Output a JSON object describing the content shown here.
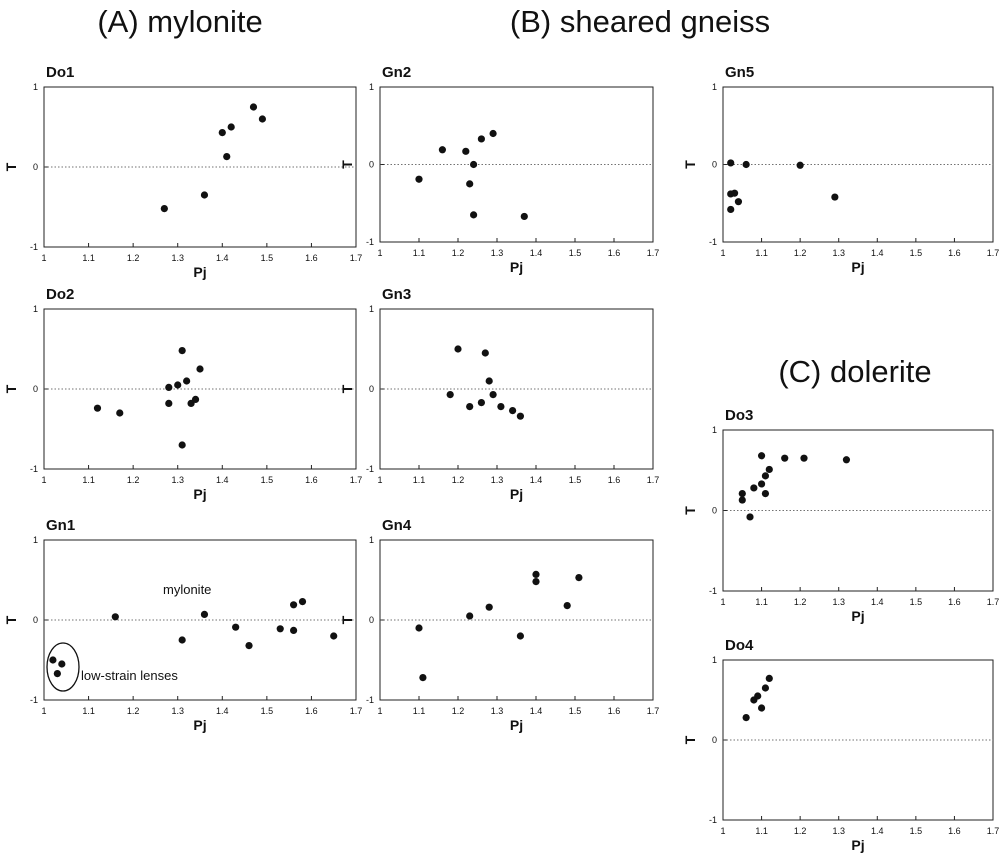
{
  "headings": [
    "(A) mylonite",
    "(B) sheared gneiss",
    "(C) dolerite"
  ],
  "chart_data": [
    {
      "type": "scatter",
      "title": "Do1",
      "xlabel": "Pj",
      "ylabel": "T",
      "xlim": [
        1,
        1.7
      ],
      "ylim": [
        -1,
        1
      ],
      "xticks": [
        1,
        1.1,
        1.2,
        1.3,
        1.4,
        1.5,
        1.6,
        1.7
      ],
      "yticks": [
        -1,
        0,
        1
      ],
      "reference_line": 0,
      "color": "#111111",
      "x": [
        1.27,
        1.36,
        1.4,
        1.42,
        1.41,
        1.47,
        1.49
      ],
      "values": [
        -0.52,
        -0.35,
        0.43,
        0.5,
        0.13,
        0.75,
        0.6
      ]
    },
    {
      "type": "scatter",
      "title": "Do2",
      "xlabel": "Pj",
      "ylabel": "T",
      "xlim": [
        1,
        1.7
      ],
      "ylim": [
        -1,
        1
      ],
      "xticks": [
        1,
        1.1,
        1.2,
        1.3,
        1.4,
        1.5,
        1.6,
        1.7
      ],
      "yticks": [
        -1,
        0,
        1
      ],
      "reference_line": 0,
      "color": "#111111",
      "x": [
        1.12,
        1.17,
        1.28,
        1.28,
        1.3,
        1.31,
        1.31,
        1.32,
        1.33,
        1.34,
        1.35
      ],
      "values": [
        -0.24,
        -0.3,
        0.02,
        -0.18,
        0.05,
        0.48,
        -0.7,
        0.1,
        -0.18,
        -0.13,
        0.25
      ]
    },
    {
      "type": "scatter",
      "title": "Gn1",
      "xlabel": "Pj",
      "ylabel": "T",
      "xlim": [
        1,
        1.7
      ],
      "ylim": [
        -1,
        1
      ],
      "xticks": [
        1,
        1.1,
        1.2,
        1.3,
        1.4,
        1.5,
        1.6,
        1.7
      ],
      "yticks": [
        -1,
        0,
        1
      ],
      "reference_line": 0,
      "color": "#111111",
      "x": [
        1.02,
        1.04,
        1.03,
        1.16,
        1.31,
        1.36,
        1.43,
        1.46,
        1.53,
        1.56,
        1.56,
        1.58,
        1.65
      ],
      "values": [
        -0.5,
        -0.55,
        -0.67,
        0.04,
        -0.25,
        0.07,
        -0.09,
        -0.32,
        -0.11,
        -0.13,
        0.19,
        0.23,
        -0.2
      ],
      "annotations": [
        "mylonite",
        "low-strain lenses"
      ]
    },
    {
      "type": "scatter",
      "title": "Gn2",
      "xlabel": "Pj",
      "ylabel": "T",
      "xlim": [
        1,
        1.7
      ],
      "ylim": [
        -1,
        1
      ],
      "xticks": [
        1,
        1.1,
        1.2,
        1.3,
        1.4,
        1.5,
        1.6,
        1.7
      ],
      "yticks": [
        -1,
        0,
        1
      ],
      "reference_line": 0,
      "color": "#111111",
      "x": [
        1.1,
        1.16,
        1.22,
        1.23,
        1.24,
        1.24,
        1.26,
        1.29,
        1.37
      ],
      "values": [
        -0.19,
        0.19,
        0.17,
        -0.25,
        0.0,
        -0.65,
        0.33,
        0.4,
        -0.67
      ]
    },
    {
      "type": "scatter",
      "title": "Gn3",
      "xlabel": "Pj",
      "ylabel": "T",
      "xlim": [
        1,
        1.7
      ],
      "ylim": [
        -1,
        1
      ],
      "xticks": [
        1,
        1.1,
        1.2,
        1.3,
        1.4,
        1.5,
        1.6,
        1.7
      ],
      "yticks": [
        -1,
        0,
        1
      ],
      "reference_line": 0,
      "color": "#111111",
      "x": [
        1.18,
        1.2,
        1.23,
        1.26,
        1.27,
        1.28,
        1.29,
        1.31,
        1.34,
        1.36
      ],
      "values": [
        -0.07,
        0.5,
        -0.22,
        -0.17,
        0.45,
        0.1,
        -0.07,
        -0.22,
        -0.27,
        -0.34
      ]
    },
    {
      "type": "scatter",
      "title": "Gn4",
      "xlabel": "Pj",
      "ylabel": "T",
      "xlim": [
        1,
        1.7
      ],
      "ylim": [
        -1,
        1
      ],
      "xticks": [
        1,
        1.1,
        1.2,
        1.3,
        1.4,
        1.5,
        1.6,
        1.7
      ],
      "yticks": [
        -1,
        0,
        1
      ],
      "reference_line": 0,
      "color": "#111111",
      "x": [
        1.1,
        1.11,
        1.23,
        1.28,
        1.36,
        1.4,
        1.4,
        1.48,
        1.51
      ],
      "values": [
        -0.1,
        -0.72,
        0.05,
        0.16,
        -0.2,
        0.48,
        0.57,
        0.18,
        0.53
      ]
    },
    {
      "type": "scatter",
      "title": "Gn5",
      "xlabel": "Pj",
      "ylabel": "T",
      "xlim": [
        1,
        1.7
      ],
      "ylim": [
        -1,
        1
      ],
      "xticks": [
        1,
        1.1,
        1.2,
        1.3,
        1.4,
        1.5,
        1.6,
        1.7
      ],
      "yticks": [
        -1,
        0,
        1
      ],
      "reference_line": 0,
      "color": "#111111",
      "x": [
        1.02,
        1.02,
        1.03,
        1.02,
        1.04,
        1.06,
        1.2,
        1.29
      ],
      "values": [
        -0.38,
        0.02,
        -0.37,
        -0.58,
        -0.48,
        0.0,
        -0.01,
        -0.42
      ]
    },
    {
      "type": "scatter",
      "title": "Do3",
      "xlabel": "Pj",
      "ylabel": "T",
      "xlim": [
        1,
        1.7
      ],
      "ylim": [
        -1,
        1
      ],
      "xticks": [
        1,
        1.1,
        1.2,
        1.3,
        1.4,
        1.5,
        1.6,
        1.7
      ],
      "yticks": [
        -1,
        0,
        1
      ],
      "reference_line": 0,
      "color": "#111111",
      "x": [
        1.05,
        1.05,
        1.07,
        1.08,
        1.1,
        1.1,
        1.11,
        1.11,
        1.12,
        1.16,
        1.21,
        1.32
      ],
      "values": [
        0.13,
        0.21,
        -0.08,
        0.28,
        0.33,
        0.68,
        0.21,
        0.43,
        0.51,
        0.65,
        0.65,
        0.63
      ]
    },
    {
      "type": "scatter",
      "title": "Do4",
      "xlabel": "Pj",
      "ylabel": "T",
      "xlim": [
        1,
        1.7
      ],
      "ylim": [
        -1,
        1
      ],
      "xticks": [
        1,
        1.1,
        1.2,
        1.3,
        1.4,
        1.5,
        1.6,
        1.7
      ],
      "yticks": [
        -1,
        0,
        1
      ],
      "reference_line": 0,
      "color": "#111111",
      "x": [
        1.06,
        1.08,
        1.09,
        1.1,
        1.11,
        1.12
      ],
      "values": [
        0.28,
        0.5,
        0.55,
        0.4,
        0.65,
        0.77
      ]
    }
  ]
}
